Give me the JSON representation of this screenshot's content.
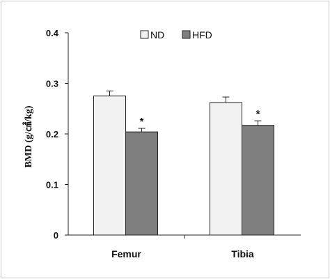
{
  "chart_data": {
    "type": "bar",
    "title": "",
    "xlabel": "",
    "ylabel": "BMD (g/㎠/kg)",
    "ylim": [
      0,
      0.4
    ],
    "yticks": [
      "0",
      "0.1",
      "0.2",
      "0.3",
      "0.4"
    ],
    "categories": [
      "Femur",
      "Tibia"
    ],
    "series": [
      {
        "name": "ND",
        "values": [
          0.275,
          0.262
        ],
        "errors": [
          0.01,
          0.011
        ],
        "color": "#f2f2f2"
      },
      {
        "name": "HFD",
        "values": [
          0.204,
          0.217
        ],
        "errors": [
          0.007,
          0.009
        ],
        "color": "#7f7f7f"
      }
    ],
    "annotations": [
      {
        "category": "Femur",
        "series": "HFD",
        "text": "*"
      },
      {
        "category": "Tibia",
        "series": "HFD",
        "text": "*"
      }
    ],
    "legend_position": "top",
    "grid": false
  }
}
